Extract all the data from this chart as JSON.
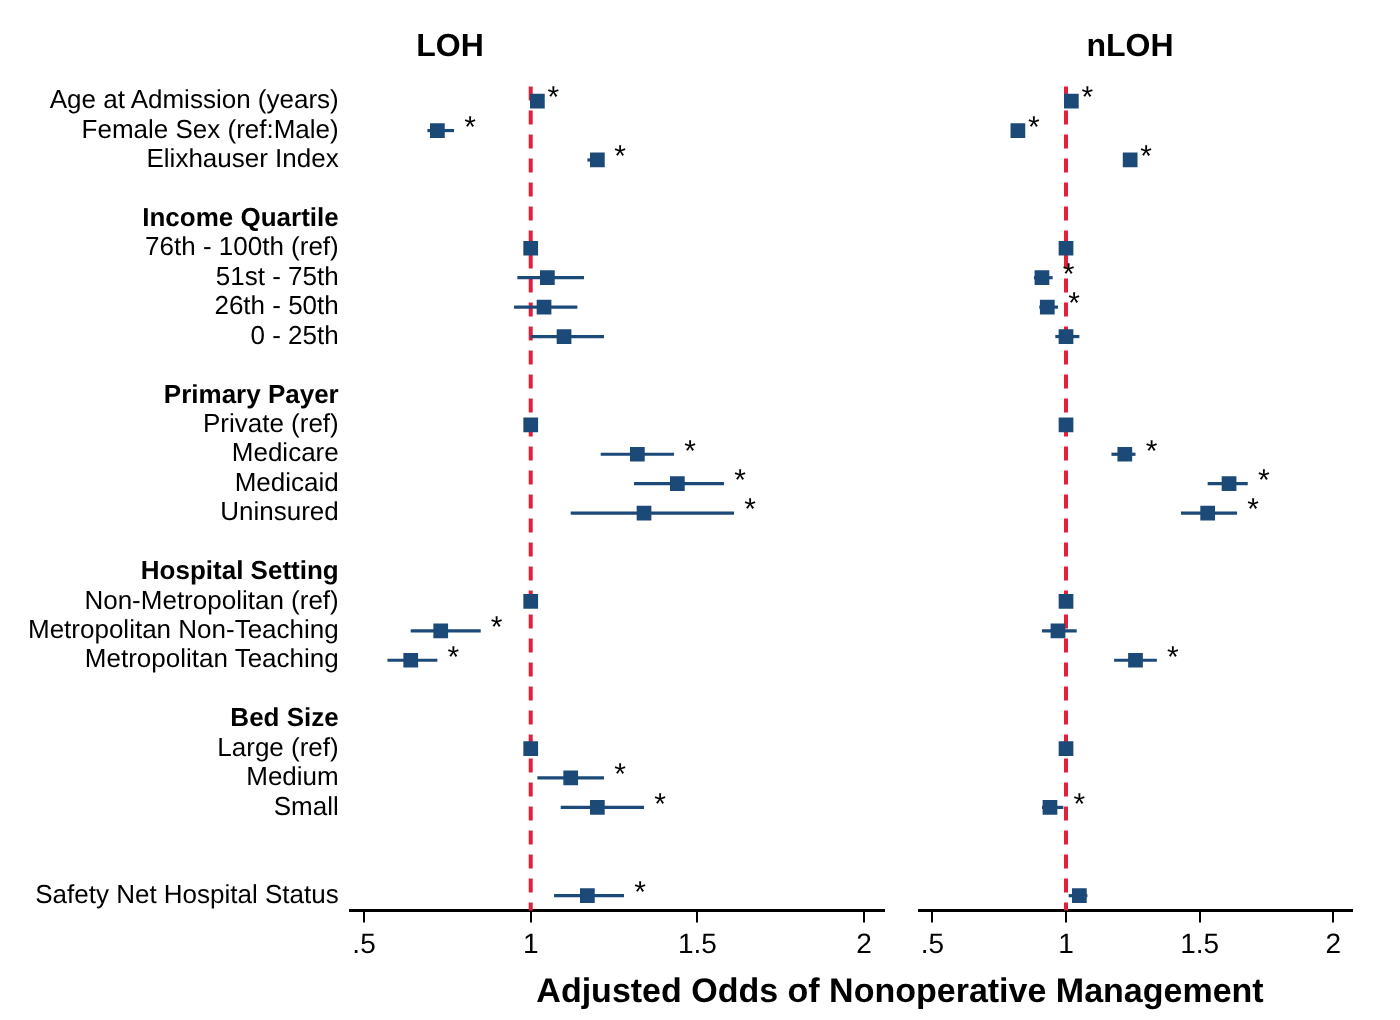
{
  "chart_data": [
    {
      "type": "scatter",
      "title": "LOH",
      "xlabel": "Adjusted Odds of Nonoperative Management",
      "orientation": "horizontal",
      "marker": "square",
      "grid": false,
      "color": "#1c4a78",
      "categories": [
        "Age at Admission (years)",
        "Female Sex (ref:Male)",
        "Elixhauser Index",
        null,
        "Income Quartile",
        "76th - 100th (ref)",
        "51st - 75th",
        "26th - 50th",
        "0 - 25th",
        null,
        "Primary Payer",
        "Private (ref)",
        "Medicare",
        "Medicaid",
        "Uninsured",
        null,
        "Hospital Setting",
        "Non-Metropolitan (ref)",
        "Metropolitan Non-Teaching",
        "Metropolitan Teaching",
        null,
        "Bed Size",
        "Large (ref)",
        "Medium",
        "Small",
        null,
        null,
        "Safety Net Hospital Status"
      ],
      "values": [
        1.02,
        0.72,
        1.2,
        null,
        null,
        1,
        1.05,
        1.04,
        1.1,
        null,
        null,
        1,
        1.32,
        1.44,
        1.34,
        null,
        null,
        1,
        0.73,
        0.64,
        null,
        null,
        1,
        1.12,
        1.2,
        null,
        null,
        1.17
      ],
      "errors": [
        null,
        [
          0.69,
          0.77
        ],
        [
          1.17,
          1.22
        ],
        null,
        null,
        null,
        [
          0.96,
          1.16
        ],
        [
          0.95,
          1.14
        ],
        [
          1.0,
          1.22
        ],
        null,
        null,
        null,
        [
          1.21,
          1.43
        ],
        [
          1.31,
          1.58
        ],
        [
          1.12,
          1.61
        ],
        null,
        null,
        null,
        [
          0.64,
          0.85
        ],
        [
          0.57,
          0.72
        ],
        null,
        null,
        null,
        [
          1.02,
          1.22
        ],
        [
          1.09,
          1.34
        ],
        null,
        null,
        [
          1.07,
          1.28
        ]
      ],
      "annotations": [
        {
          "text": "*",
          "x": 1.02,
          "y": "Age at Admission (years)"
        },
        {
          "text": "*",
          "x": 0.77,
          "y": "Female Sex (ref:Male)"
        },
        {
          "text": "*",
          "x": 1.22,
          "y": "Elixhauser Index"
        },
        {
          "text": "*",
          "x": 1.43,
          "y": "Medicare"
        },
        {
          "text": "*",
          "x": 1.58,
          "y": "Medicaid"
        },
        {
          "text": "*",
          "x": 1.61,
          "y": "Uninsured"
        },
        {
          "text": "*",
          "x": 0.85,
          "y": "Metropolitan Non-Teaching"
        },
        {
          "text": "*",
          "x": 0.72,
          "y": "Metropolitan Teaching"
        },
        {
          "text": "*",
          "x": 1.22,
          "y": "Medium"
        },
        {
          "text": "*",
          "x": 1.34,
          "y": "Small"
        },
        {
          "text": "*",
          "x": 1.28,
          "y": "Safety Net Hospital Status"
        }
      ],
      "xlim": [
        0.46,
        2.06
      ],
      "xticks": [
        {
          "value": 0.5,
          "label": ".5"
        },
        1,
        1.5,
        2
      ],
      "ref_lines": [
        {
          "axis": "x",
          "value": 1,
          "color": "#e0203c",
          "line_style": "dashed"
        }
      ]
    },
    {
      "type": "scatter",
      "title": "nLOH",
      "orientation": "horizontal",
      "marker": "square",
      "grid": false,
      "color": "#1c4a78",
      "tick_labels": "x",
      "categories": [
        "Age at Admission (years)",
        "Female Sex (ref:Male)",
        "Elixhauser Index",
        null,
        "Income Quartile",
        "76th - 100th (ref)",
        "51st - 75th",
        "26th - 50th",
        "0 - 25th",
        null,
        "Primary Payer",
        "Private (ref)",
        "Medicare",
        "Medicaid",
        "Uninsured",
        null,
        "Hospital Setting",
        "Non-Metropolitan (ref)",
        "Metropolitan Non-Teaching",
        "Metropolitan Teaching",
        null,
        "Bed Size",
        "Large (ref)",
        "Medium",
        "Small",
        null,
        null,
        "Safety Net Hospital Status"
      ],
      "values": [
        1.02,
        0.82,
        1.24,
        null,
        null,
        1,
        0.91,
        0.93,
        1.0,
        null,
        null,
        1,
        1.22,
        1.61,
        1.53,
        null,
        null,
        1,
        0.97,
        1.26,
        null,
        null,
        1,
        null,
        0.94,
        null,
        null,
        1.05
      ],
      "errors": [
        null,
        null,
        null,
        null,
        null,
        null,
        [
          0.88,
          0.95
        ],
        [
          0.9,
          0.97
        ],
        [
          0.96,
          1.05
        ],
        null,
        null,
        null,
        [
          1.17,
          1.26
        ],
        [
          1.53,
          1.68
        ],
        [
          1.43,
          1.64
        ],
        null,
        null,
        null,
        [
          0.91,
          1.04
        ],
        [
          1.18,
          1.34
        ],
        null,
        null,
        null,
        null,
        [
          0.91,
          0.99
        ],
        null,
        null,
        [
          1.01,
          1.08
        ]
      ],
      "annotations": [
        {
          "text": "*",
          "x": 1.02,
          "y": "Age at Admission (years)"
        },
        {
          "text": "*",
          "x": 0.82,
          "y": "Female Sex (ref:Male)"
        },
        {
          "text": "*",
          "x": 1.24,
          "y": "Elixhauser Index"
        },
        {
          "text": "*",
          "x": 0.95,
          "y": "51st - 75th"
        },
        {
          "text": "*",
          "x": 0.97,
          "y": "26th - 50th"
        },
        {
          "text": "*",
          "x": 1.26,
          "y": "Medicare"
        },
        {
          "text": "*",
          "x": 1.68,
          "y": "Medicaid"
        },
        {
          "text": "*",
          "x": 1.64,
          "y": "Uninsured"
        },
        {
          "text": "*",
          "x": 1.34,
          "y": "Metropolitan Teaching"
        },
        {
          "text": "*",
          "x": 0.99,
          "y": "Small"
        }
      ],
      "xlim": [
        0.45,
        2.07
      ],
      "xticks": [
        {
          "value": 0.5,
          "label": ".5"
        },
        1,
        1.5,
        2
      ],
      "ref_lines": [
        {
          "axis": "x",
          "value": 1,
          "color": "#e0203c",
          "line_style": "dashed"
        }
      ]
    }
  ]
}
